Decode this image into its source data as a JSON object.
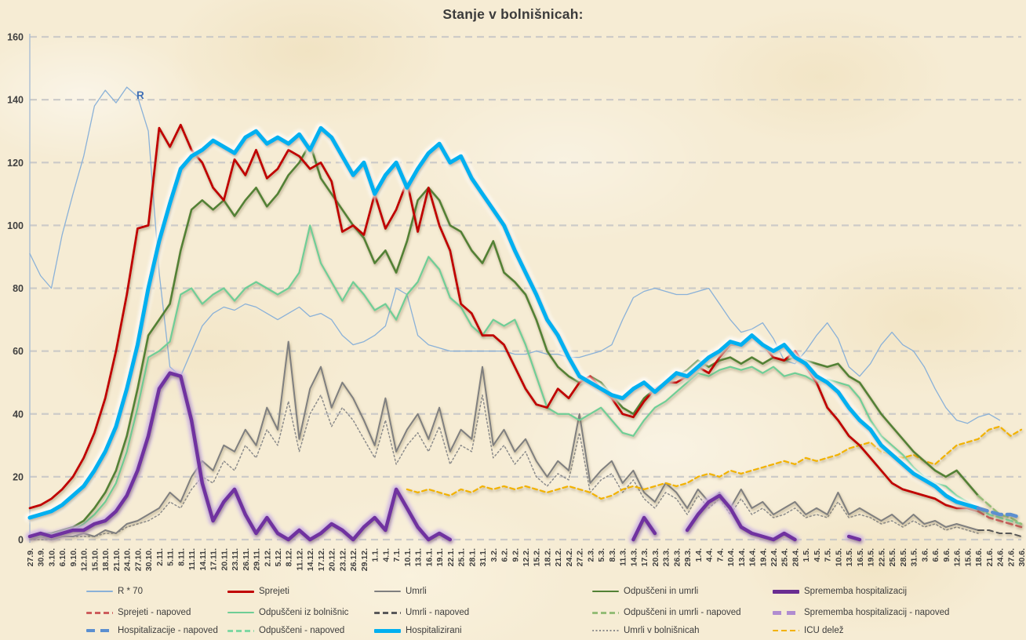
{
  "title": "Stanje v bolnišnicah:",
  "annotations": {
    "r_label": "R"
  },
  "colors": {
    "background": "#f6ecd4",
    "title_text": "#3b3b3b",
    "axis_line": "#a8bdd4",
    "gridline": "#c6c6c6",
    "tick_text": "#3f3f3f",
    "r_annotation": "#3f6fb5"
  },
  "chart_data": {
    "type": "line",
    "title": "Stanje v bolnišnicah:",
    "xlabel": "",
    "ylabel": "",
    "ylim": [
      0,
      160
    ],
    "y_ticks": [
      0,
      20,
      40,
      60,
      80,
      100,
      120,
      140,
      160
    ],
    "grid": "horizontal-dashed",
    "legend_position": "bottom",
    "x_labels": [
      "27.9.",
      "30.9.",
      "3.10.",
      "6.10.",
      "9.10.",
      "12.10.",
      "15.10.",
      "18.10.",
      "21.10.",
      "24.10.",
      "27.10.",
      "30.10.",
      "2.11.",
      "5.11.",
      "8.11.",
      "11.11.",
      "14.11.",
      "17.11.",
      "20.11.",
      "23.11.",
      "26.11.",
      "29.11.",
      "2.12.",
      "5.12.",
      "8.12.",
      "11.12.",
      "14.12.",
      "17.12.",
      "20.12.",
      "23.12.",
      "26.12.",
      "29.12.",
      "1.1.",
      "4.1.",
      "7.1.",
      "10.1.",
      "13.1.",
      "16.1.",
      "19.1.",
      "22.1.",
      "25.1.",
      "28.1.",
      "31.1.",
      "3.2.",
      "6.2.",
      "9.2.",
      "12.2.",
      "15.2.",
      "18.2.",
      "21.2.",
      "24.2.",
      "27.2.",
      "2.3.",
      "5.3.",
      "8.3.",
      "11.3.",
      "14.3.",
      "17.3.",
      "20.3.",
      "23.3.",
      "26.3.",
      "29.3.",
      "1.4.",
      "4.4.",
      "7.4.",
      "10.4.",
      "13.4.",
      "16.4.",
      "19.4.",
      "22.4.",
      "25.4.",
      "28.4.",
      "1.5.",
      "4.5.",
      "7.5.",
      "10.5.",
      "13.5.",
      "16.5.",
      "19.5.",
      "22.5.",
      "25.5.",
      "28.5.",
      "31.5.",
      "3.6.",
      "6.6.",
      "9.6.",
      "12.6.",
      "15.6.",
      "18.6.",
      "21.6.",
      "24.6.",
      "27.6.",
      "30.6."
    ],
    "series": [
      {
        "id": "r70",
        "name": "R * 70",
        "color": "#8ab1d8",
        "width": 1.3,
        "dash": null,
        "values": [
          91,
          84,
          80,
          97,
          110,
          122,
          138,
          143,
          139,
          144,
          141,
          130,
          85,
          55,
          52,
          60,
          68,
          72,
          74,
          73,
          75,
          74,
          72,
          70,
          72,
          74,
          71,
          72,
          70,
          65,
          62,
          63,
          65,
          68,
          80,
          78,
          65,
          62,
          61,
          60,
          60,
          60,
          60,
          60,
          60,
          59,
          59,
          60,
          59,
          59,
          58,
          58,
          59,
          60,
          62,
          70,
          77,
          79,
          80,
          79,
          78,
          78,
          79,
          80,
          75,
          70,
          66,
          67,
          69,
          64,
          57,
          56,
          60,
          65,
          69,
          64,
          55,
          52,
          56,
          62,
          66,
          62,
          60,
          55,
          48,
          42,
          38,
          37,
          39,
          40,
          38,
          null,
          null
        ]
      },
      {
        "id": "umrli_bolnisnice",
        "name": "Umrli v bolnišnicah",
        "color": "#8c8c8c",
        "width": 1.5,
        "dash": "2 3",
        "values": [
          0,
          0,
          0,
          1,
          1,
          1,
          1,
          2,
          2,
          4,
          5,
          6,
          8,
          12,
          10,
          16,
          20,
          18,
          25,
          22,
          30,
          26,
          35,
          30,
          44,
          28,
          40,
          46,
          36,
          42,
          38,
          32,
          26,
          38,
          24,
          30,
          34,
          28,
          36,
          24,
          30,
          28,
          46,
          26,
          30,
          24,
          28,
          20,
          17,
          21,
          19,
          34,
          15,
          19,
          21,
          15,
          19,
          13,
          10,
          15,
          13,
          8,
          14,
          10,
          13,
          8,
          13,
          8,
          10,
          7,
          8,
          10,
          7,
          8,
          7,
          12,
          7,
          8,
          7,
          5,
          6,
          4,
          6,
          4,
          5,
          3,
          4,
          3,
          2,
          null,
          null,
          null,
          null
        ]
      },
      {
        "id": "umrli",
        "name": "Umrli",
        "color": "#7f7f7f",
        "width": 2,
        "dash": null,
        "values": [
          0,
          1,
          0,
          1,
          1,
          2,
          1,
          3,
          2,
          5,
          6,
          8,
          10,
          15,
          12,
          20,
          25,
          22,
          30,
          28,
          35,
          30,
          42,
          35,
          63,
          32,
          48,
          55,
          42,
          50,
          45,
          38,
          30,
          45,
          28,
          35,
          40,
          32,
          42,
          28,
          35,
          32,
          55,
          30,
          35,
          28,
          32,
          25,
          20,
          25,
          22,
          40,
          18,
          22,
          25,
          18,
          22,
          15,
          12,
          18,
          15,
          10,
          16,
          12,
          15,
          10,
          16,
          10,
          12,
          8,
          10,
          12,
          8,
          10,
          8,
          15,
          8,
          10,
          8,
          6,
          8,
          5,
          8,
          5,
          6,
          4,
          5,
          4,
          3,
          null,
          null,
          null,
          null
        ]
      },
      {
        "id": "icu",
        "name": "ICU delež",
        "color": "#f2b200",
        "width": 2.2,
        "dash": "6 4",
        "start": 35,
        "values": [
          16,
          15,
          16,
          15,
          14,
          16,
          15,
          17,
          16,
          17,
          16,
          17,
          16,
          15,
          16,
          17,
          16,
          15,
          13,
          14,
          16,
          17,
          16,
          17,
          18,
          17,
          18,
          20,
          21,
          20,
          22,
          21,
          22,
          23,
          24,
          25,
          24,
          26,
          25,
          26,
          27,
          29,
          30,
          31,
          28,
          27,
          26,
          27,
          25,
          24,
          27,
          30,
          31,
          32,
          35,
          36,
          33,
          35
        ]
      },
      {
        "id": "odpusceni",
        "name": "Odpuščeni iz bolnišnic",
        "color": "#6fce96",
        "width": 2.2,
        "dash": null,
        "values": [
          1,
          1,
          2,
          2,
          3,
          5,
          8,
          12,
          18,
          28,
          42,
          58,
          60,
          63,
          78,
          80,
          75,
          78,
          80,
          76,
          80,
          82,
          80,
          78,
          80,
          85,
          100,
          88,
          82,
          76,
          82,
          78,
          73,
          75,
          70,
          78,
          82,
          90,
          86,
          77,
          74,
          68,
          65,
          70,
          68,
          70,
          62,
          52,
          42,
          40,
          40,
          38,
          40,
          42,
          38,
          34,
          33,
          38,
          42,
          44,
          47,
          50,
          53,
          52,
          54,
          55,
          54,
          55,
          53,
          55,
          52,
          53,
          52,
          50,
          51,
          50,
          49,
          45,
          38,
          33,
          30,
          27,
          23,
          20,
          18,
          17,
          14,
          12,
          10,
          null,
          null,
          null,
          null
        ]
      },
      {
        "id": "odpusceni_umrli",
        "name": "Odpuščeni in umrli",
        "color": "#538135",
        "width": 2.6,
        "dash": null,
        "values": [
          1,
          2,
          2,
          3,
          4,
          6,
          10,
          15,
          22,
          33,
          48,
          65,
          70,
          75,
          92,
          105,
          108,
          105,
          108,
          103,
          108,
          112,
          106,
          110,
          116,
          120,
          126,
          115,
          110,
          105,
          100,
          96,
          88,
          92,
          85,
          95,
          108,
          112,
          108,
          100,
          98,
          92,
          88,
          95,
          85,
          82,
          78,
          70,
          60,
          55,
          52,
          50,
          52,
          50,
          46,
          42,
          40,
          45,
          48,
          50,
          52,
          54,
          57,
          55,
          57,
          58,
          56,
          58,
          56,
          58,
          57,
          58,
          57,
          56,
          55,
          56,
          52,
          50,
          45,
          40,
          36,
          32,
          28,
          25,
          22,
          20,
          22,
          18,
          14,
          null,
          null,
          null,
          null
        ]
      },
      {
        "id": "sprejeti",
        "name": "Sprejeti",
        "color": "#c00000",
        "width": 2.8,
        "dash": null,
        "values": [
          10,
          11,
          13,
          16,
          20,
          26,
          34,
          45,
          60,
          78,
          99,
          100,
          131,
          125,
          132,
          124,
          120,
          112,
          108,
          121,
          116,
          124,
          115,
          118,
          124,
          122,
          118,
          120,
          114,
          98,
          100,
          97,
          110,
          99,
          105,
          114,
          98,
          112,
          100,
          92,
          75,
          72,
          65,
          65,
          62,
          55,
          48,
          43,
          42,
          48,
          45,
          50,
          52,
          48,
          45,
          40,
          39,
          44,
          48,
          50,
          50,
          52,
          55,
          53,
          58,
          62,
          62,
          65,
          62,
          58,
          57,
          60,
          55,
          50,
          42,
          38,
          33,
          30,
          26,
          22,
          18,
          16,
          15,
          14,
          13,
          11,
          10,
          10,
          9,
          null,
          null,
          null,
          null
        ]
      },
      {
        "id": "sprememba",
        "name": "Sprememba hospitalizacij",
        "color": "#7030a0",
        "width": 4.5,
        "dash": null,
        "glow": "#cdb3e6",
        "values": [
          1,
          2,
          1,
          2,
          3,
          3,
          5,
          6,
          9,
          14,
          22,
          33,
          48,
          53,
          52,
          38,
          18,
          6,
          12,
          16,
          8,
          2,
          7,
          2,
          0,
          3,
          0,
          2,
          5,
          3,
          0,
          4,
          7,
          3,
          16,
          10,
          4,
          0,
          2,
          0,
          null,
          null,
          null,
          null,
          null,
          null,
          null,
          null,
          null,
          null,
          null,
          null,
          null,
          null,
          null,
          null,
          0,
          7,
          2,
          null,
          null,
          3,
          8,
          12,
          14,
          10,
          4,
          2,
          1,
          0,
          2,
          0,
          null,
          null,
          null,
          null,
          1,
          0,
          null,
          null,
          null,
          null,
          null,
          null,
          null,
          null,
          null,
          null,
          null,
          null,
          null,
          null,
          null
        ]
      },
      {
        "id": "hospitalizirani",
        "name": "Hospitalizirani",
        "color": "#00b0f0",
        "width": 5,
        "dash": null,
        "glow": "#ffffff",
        "values": [
          7,
          8,
          9,
          11,
          14,
          17,
          22,
          28,
          36,
          48,
          62,
          80,
          95,
          107,
          118,
          122,
          124,
          127,
          125,
          123,
          128,
          130,
          126,
          128,
          126,
          129,
          124,
          131,
          128,
          122,
          116,
          120,
          110,
          116,
          120,
          112,
          118,
          123,
          126,
          120,
          122,
          115,
          110,
          105,
          100,
          92,
          85,
          78,
          70,
          65,
          58,
          52,
          50,
          48,
          46,
          45,
          48,
          50,
          47,
          50,
          53,
          52,
          55,
          58,
          60,
          63,
          62,
          65,
          62,
          60,
          62,
          58,
          56,
          52,
          50,
          47,
          42,
          38,
          35,
          30,
          27,
          24,
          21,
          19,
          17,
          14,
          12,
          11,
          10,
          null,
          null,
          null,
          null
        ]
      },
      {
        "id": "sprejeti_napoved",
        "name": "Sprejeti - napoved",
        "color": "#cd5c5c",
        "width": 2.5,
        "dash": "8 5",
        "start": 88,
        "values": [
          9,
          7,
          6,
          5,
          4
        ]
      },
      {
        "id": "odpusceni_napoved",
        "name": "Odpuščeni - napoved",
        "color": "#7fd8a3",
        "width": 2.5,
        "dash": "8 5",
        "start": 88,
        "values": [
          10,
          8,
          7,
          6,
          5
        ]
      },
      {
        "id": "odpusceni_umrli_napoved",
        "name": "Odpuščeni in umrli - napoved",
        "color": "#95bd77",
        "width": 2.5,
        "dash": "8 5",
        "start": 88,
        "values": [
          14,
          11,
          8,
          7,
          5
        ]
      },
      {
        "id": "umrli_napoved",
        "name": "Umrli - napoved",
        "color": "#595959",
        "width": 2,
        "dash": "7 5",
        "start": 88,
        "values": [
          3,
          3,
          2,
          2,
          1
        ]
      },
      {
        "id": "hospitalizacije_napoved",
        "name": "Hospitalizacije - napoved",
        "color": "#5b8fd0",
        "width": 4.5,
        "dash": "12 7",
        "start": 88,
        "values": [
          10,
          9,
          8,
          8,
          7
        ]
      },
      {
        "id": "sprememba_napoved",
        "name": "Sprememba hospitalizacij - napoved",
        "color": "#b08cd0",
        "width": 4.5,
        "dash": "12 7",
        "values": []
      }
    ]
  },
  "legend": {
    "columns": [
      {
        "items": [
          {
            "label": "R * 70",
            "color": "#8ab1d8",
            "style": "solid",
            "h": 1.5
          },
          {
            "label": "Sprejeti - napoved",
            "color": "#cd5c5c",
            "style": "dash",
            "h": 3
          },
          {
            "label": "Hospitalizacije - napoved",
            "color": "#5b8fd0",
            "style": "longdash",
            "h": 4
          }
        ]
      },
      {
        "items": [
          {
            "label": "Sprejeti",
            "color": "#c00000",
            "style": "solid",
            "h": 3
          },
          {
            "label": "Odpuščeni iz bolnišnic",
            "color": "#6fce96",
            "style": "solid",
            "h": 2.5
          },
          {
            "label": "Odpuščeni - napoved",
            "color": "#7fd8a3",
            "style": "dash",
            "h": 3
          }
        ]
      },
      {
        "items": [
          {
            "label": "Umrli",
            "color": "#7f7f7f",
            "style": "solid",
            "h": 2
          },
          {
            "label": "Umrli - napoved",
            "color": "#595959",
            "style": "dash",
            "h": 3
          },
          {
            "label": "Hospitalizirani",
            "color": "#00b0f0",
            "style": "solid",
            "h": 5
          }
        ]
      },
      {
        "items": [
          {
            "label": "Odpuščeni in umrli",
            "color": "#538135",
            "style": "solid",
            "h": 2.5
          },
          {
            "label": "Odpuščeni in umrli - napoved",
            "color": "#95bd77",
            "style": "dash",
            "h": 3
          },
          {
            "label": "Umrli v bolnišnicah",
            "color": "#8c8c8c",
            "style": "dot",
            "h": 2
          }
        ]
      },
      {
        "items": [
          {
            "label": "Sprememba hospitalizacij",
            "color": "#6a2d91",
            "style": "solid",
            "h": 5
          },
          {
            "label": "Sprememba hospitalizacij - napoved",
            "color": "#b08cd0",
            "style": "longdash",
            "h": 5
          },
          {
            "label": "ICU delež",
            "color": "#f2b200",
            "style": "dash",
            "h": 2.5
          }
        ]
      }
    ]
  }
}
